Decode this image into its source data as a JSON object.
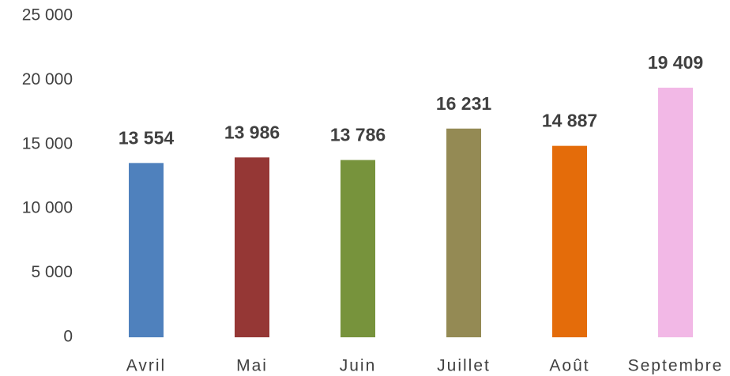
{
  "chart_data": {
    "type": "bar",
    "categories": [
      "Avril",
      "Mai",
      "Juin",
      "Juillet",
      "Août",
      "Septembre"
    ],
    "values": [
      13554,
      13986,
      13786,
      16231,
      14887,
      19409
    ],
    "value_labels": [
      "13 554",
      "13 986",
      "13 786",
      "16 231",
      "14 887",
      "19 409"
    ],
    "colors": [
      "#4f81bd",
      "#953735",
      "#77933c",
      "#948a54",
      "#e46c0a",
      "#f2b8e6"
    ],
    "ylim": [
      0,
      25000
    ],
    "yticks": [
      {
        "value": 0,
        "label": "0"
      },
      {
        "value": 5000,
        "label": "5 000"
      },
      {
        "value": 10000,
        "label": "10 000"
      },
      {
        "value": 15000,
        "label": "15 000"
      },
      {
        "value": 20000,
        "label": "20 000"
      },
      {
        "value": 25000,
        "label": "25 000"
      }
    ],
    "grid": false
  }
}
